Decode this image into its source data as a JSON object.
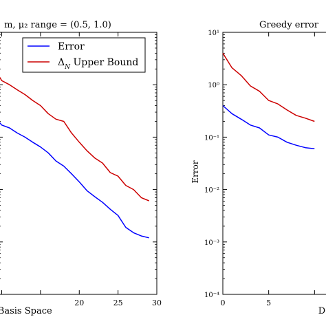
{
  "chart_data": [
    {
      "type": "line",
      "title": "m, μ₂ range = (0.5, 1.0)",
      "xlabel": "d Basis Space",
      "ylabel": "",
      "xlim": [
        9.6,
        30
      ],
      "ylim": [
        0.0001,
        10
      ],
      "yscale": "log",
      "xticks": [
        20,
        25,
        30
      ],
      "xtick_labels": [
        "20",
        "25",
        "30"
      ],
      "grid": false,
      "legend_position": "top-right",
      "legend": [
        "Error",
        "Δ_N Upper Bound"
      ],
      "series": [
        {
          "name": "Error",
          "color": "#0000ff",
          "x": [
            9.6,
            10,
            11,
            12,
            13,
            14,
            15,
            16,
            17,
            18,
            19,
            20,
            21,
            22,
            23,
            24,
            25,
            26,
            27,
            28,
            29
          ],
          "y": [
            0.2,
            0.17,
            0.15,
            0.12,
            0.1,
            0.08,
            0.065,
            0.05,
            0.035,
            0.028,
            0.02,
            0.014,
            0.0095,
            0.0073,
            0.0057,
            0.0042,
            0.0032,
            0.0019,
            0.0015,
            0.0013,
            0.0012
          ]
        },
        {
          "name": "Δ_N Upper Bound",
          "color": "#cc0000",
          "x": [
            9.6,
            10,
            11,
            12,
            13,
            14,
            15,
            16,
            17,
            18,
            19,
            20,
            21,
            22,
            23,
            24,
            25,
            26,
            27,
            28,
            29
          ],
          "y": [
            1.5,
            1.2,
            1.0,
            0.8,
            0.65,
            0.5,
            0.4,
            0.28,
            0.22,
            0.2,
            0.12,
            0.08,
            0.055,
            0.04,
            0.032,
            0.021,
            0.018,
            0.012,
            0.01,
            0.007,
            0.0061
          ]
        }
      ]
    },
    {
      "type": "line",
      "title": "Greedy error",
      "xlabel": "D",
      "ylabel": "Error",
      "xlim": [
        0,
        12
      ],
      "ylim": [
        0.0001,
        10
      ],
      "yscale": "log",
      "xticks": [
        0,
        5
      ],
      "xtick_labels": [
        "0",
        "5"
      ],
      "yticks": [
        0.0001,
        0.001,
        0.01,
        0.1,
        1,
        10
      ],
      "ytick_labels": [
        "10⁻⁴",
        "10⁻³",
        "10⁻²",
        "10⁻¹",
        "10⁰",
        "10¹"
      ],
      "grid": false,
      "series": [
        {
          "color": "#0000ff",
          "x": [
            0,
            1,
            2,
            3,
            4,
            5,
            6,
            7,
            8,
            9,
            10
          ],
          "y": [
            0.4,
            0.28,
            0.22,
            0.17,
            0.15,
            0.11,
            0.1,
            0.08,
            0.07,
            0.063,
            0.06
          ]
        },
        {
          "color": "#cc0000",
          "x": [
            0,
            1,
            2,
            3,
            4,
            5,
            6,
            7,
            8,
            9,
            10
          ],
          "y": [
            4.0,
            2.1,
            1.5,
            0.95,
            0.75,
            0.5,
            0.43,
            0.33,
            0.26,
            0.23,
            0.2
          ]
        }
      ]
    }
  ]
}
